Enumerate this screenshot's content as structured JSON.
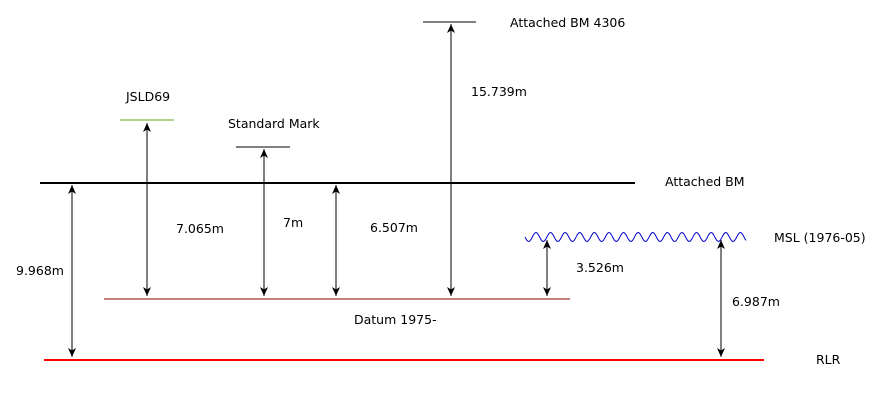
{
  "colors": {
    "ink": "#000000",
    "rlr": "#ff0000",
    "datum": "#8b0000",
    "jsld": "#66a61e",
    "msl": "#0000cc"
  },
  "levels": {
    "attached_bm_4306": "Attached BM 4306",
    "jsld69": "JSLD69",
    "standard_mark": "Standard Mark",
    "attached_bm": "Attached BM",
    "msl": "MSL (1976-05)",
    "datum": "Datum 1975-",
    "rlr": "RLR"
  },
  "measurements": {
    "bm4306_above_attached": "15.739m",
    "jsld69_above_datum": "7.065m",
    "standard_mark_above_datum": "7m",
    "attached_above_datum": "6.507m",
    "msl_above_datum": "3.526m",
    "attached_above_rlr": "9.968m",
    "msl_above_rlr": "6.987m"
  }
}
